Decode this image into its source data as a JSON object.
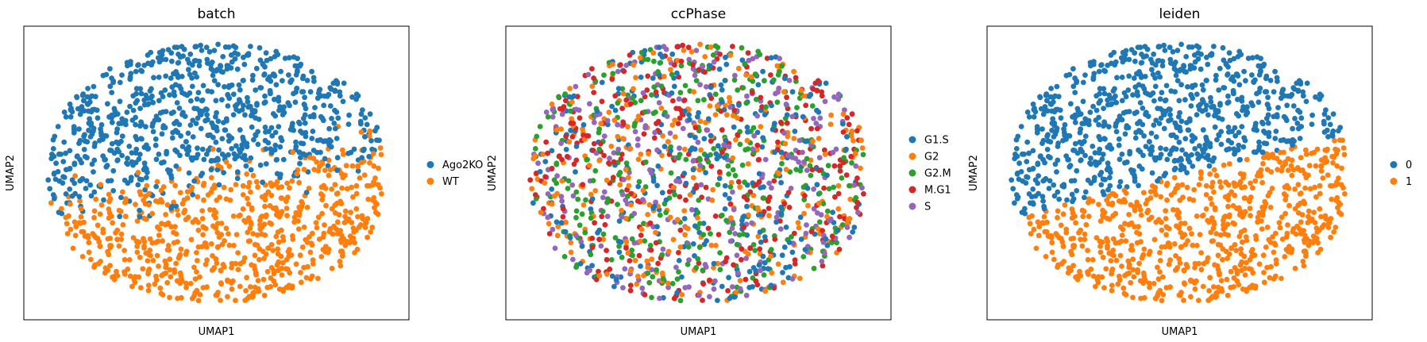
{
  "chart_data": [
    {
      "type": "scatter",
      "title": "batch",
      "xlabel": "UMAP1",
      "ylabel": "UMAP2",
      "grid": false,
      "legend": "right",
      "series": [
        {
          "name": "Ago2KO",
          "color": "#1f77b4"
        },
        {
          "name": "WT",
          "color": "#ff7f0e"
        }
      ],
      "pattern": "upper cells mostly Ago2KO, lower cells mostly WT"
    },
    {
      "type": "scatter",
      "title": "ccPhase",
      "xlabel": "UMAP1",
      "ylabel": "UMAP2",
      "grid": false,
      "legend": "right",
      "series": [
        {
          "name": "G1.S",
          "color": "#1f77b4"
        },
        {
          "name": "G2",
          "color": "#ff7f0e"
        },
        {
          "name": "G2.M",
          "color": "#2ca02c"
        },
        {
          "name": "M.G1",
          "color": "#d62728"
        },
        {
          "name": "S",
          "color": "#9467bd"
        }
      ],
      "pattern": "phases intermixed across the embedding"
    },
    {
      "type": "scatter",
      "title": "leiden",
      "xlabel": "UMAP1",
      "ylabel": "UMAP2",
      "grid": false,
      "legend": "right",
      "series": [
        {
          "name": "0",
          "color": "#1f77b4"
        },
        {
          "name": "1",
          "color": "#ff7f0e"
        }
      ],
      "pattern": "cluster 0 upper region, cluster 1 lower region"
    }
  ]
}
